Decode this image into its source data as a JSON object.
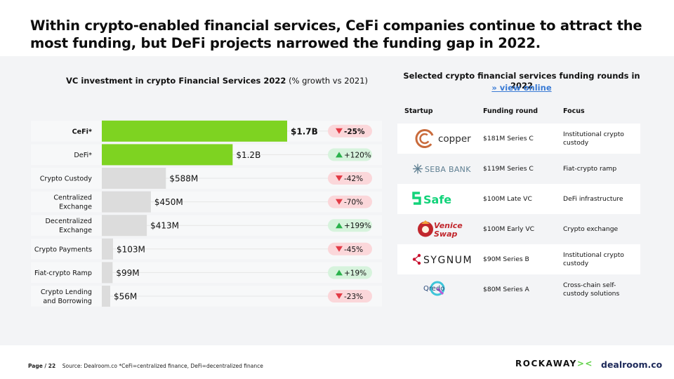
{
  "headline": "Within crypto-enabled financial services, CeFi companies continue to attract the most funding, but DeFi projects narrowed the funding gap in 2022.",
  "chart_data": {
    "type": "bar",
    "orientation": "horizontal",
    "title": "VC investment in crypto Financial Services 2022",
    "subtitle": "(% growth vs 2021)",
    "categories": [
      "CeFi*",
      "DeFi*",
      "Crypto Custody",
      "Centralized Exchange",
      "Decentralized Exchange",
      "Crypto Payments",
      "Fiat-crypto Ramp",
      "Crypto Lending and Borrowing"
    ],
    "values": [
      1700,
      1200,
      588,
      450,
      413,
      103,
      99,
      56
    ],
    "value_labels": [
      "$1.7B",
      "$1.2B",
      "$588M",
      "$450M",
      "$413M",
      "$103M",
      "$99M",
      "$56M"
    ],
    "growth_labels": [
      "-25%",
      "+120%",
      "-42%",
      "-70%",
      "+199%",
      "-45%",
      "+19%",
      "-23%"
    ],
    "growth_positive": [
      false,
      true,
      false,
      false,
      true,
      false,
      true,
      false
    ],
    "highlighted": [
      true,
      true,
      false,
      false,
      false,
      false,
      false,
      false
    ],
    "units": "USD millions",
    "xlim": [
      0,
      1700
    ]
  },
  "table": {
    "title": "Selected crypto financial services funding rounds in 2022",
    "link": "» view online",
    "headers": {
      "startup": "Startup",
      "round": "Funding round",
      "focus": "Focus"
    },
    "rows": [
      {
        "startup": "copper",
        "round": "$181M Series C",
        "focus": "Institutional crypto custody"
      },
      {
        "startup": "SEBA BANK",
        "round": "$119M Series C",
        "focus": "Fiat-crypto ramp"
      },
      {
        "startup": "Safe",
        "round": "$100M Late VC",
        "focus": "DeFi infrastructure"
      },
      {
        "startup": "Venice Swap",
        "round": "$100M Early VC",
        "focus": "Crypto exchange"
      },
      {
        "startup": "SYGNUM",
        "round": "$90M Series B",
        "focus": "Institutional crypto custody"
      },
      {
        "startup": "Qredo",
        "round": "$80M Series A",
        "focus": "Cross-chain self-custody solutions"
      }
    ]
  },
  "footer": {
    "page": "Page / 22",
    "source": "Source: Dealroom.co  *CeFi=centralized finance, DeFi=decentralized finance",
    "brand_left": "ROCKAWAY",
    "brand_left_mark": "><",
    "brand_right": "dealroom.co"
  },
  "colors": {
    "highlight": "#7ed321",
    "bar_grey": "#dcdcdc",
    "neg_bg": "#fbd7da",
    "neg_fg": "#e23b46",
    "pos_bg": "#d7f3dd",
    "pos_fg": "#2bb24c",
    "link": "#3a7bd5"
  }
}
